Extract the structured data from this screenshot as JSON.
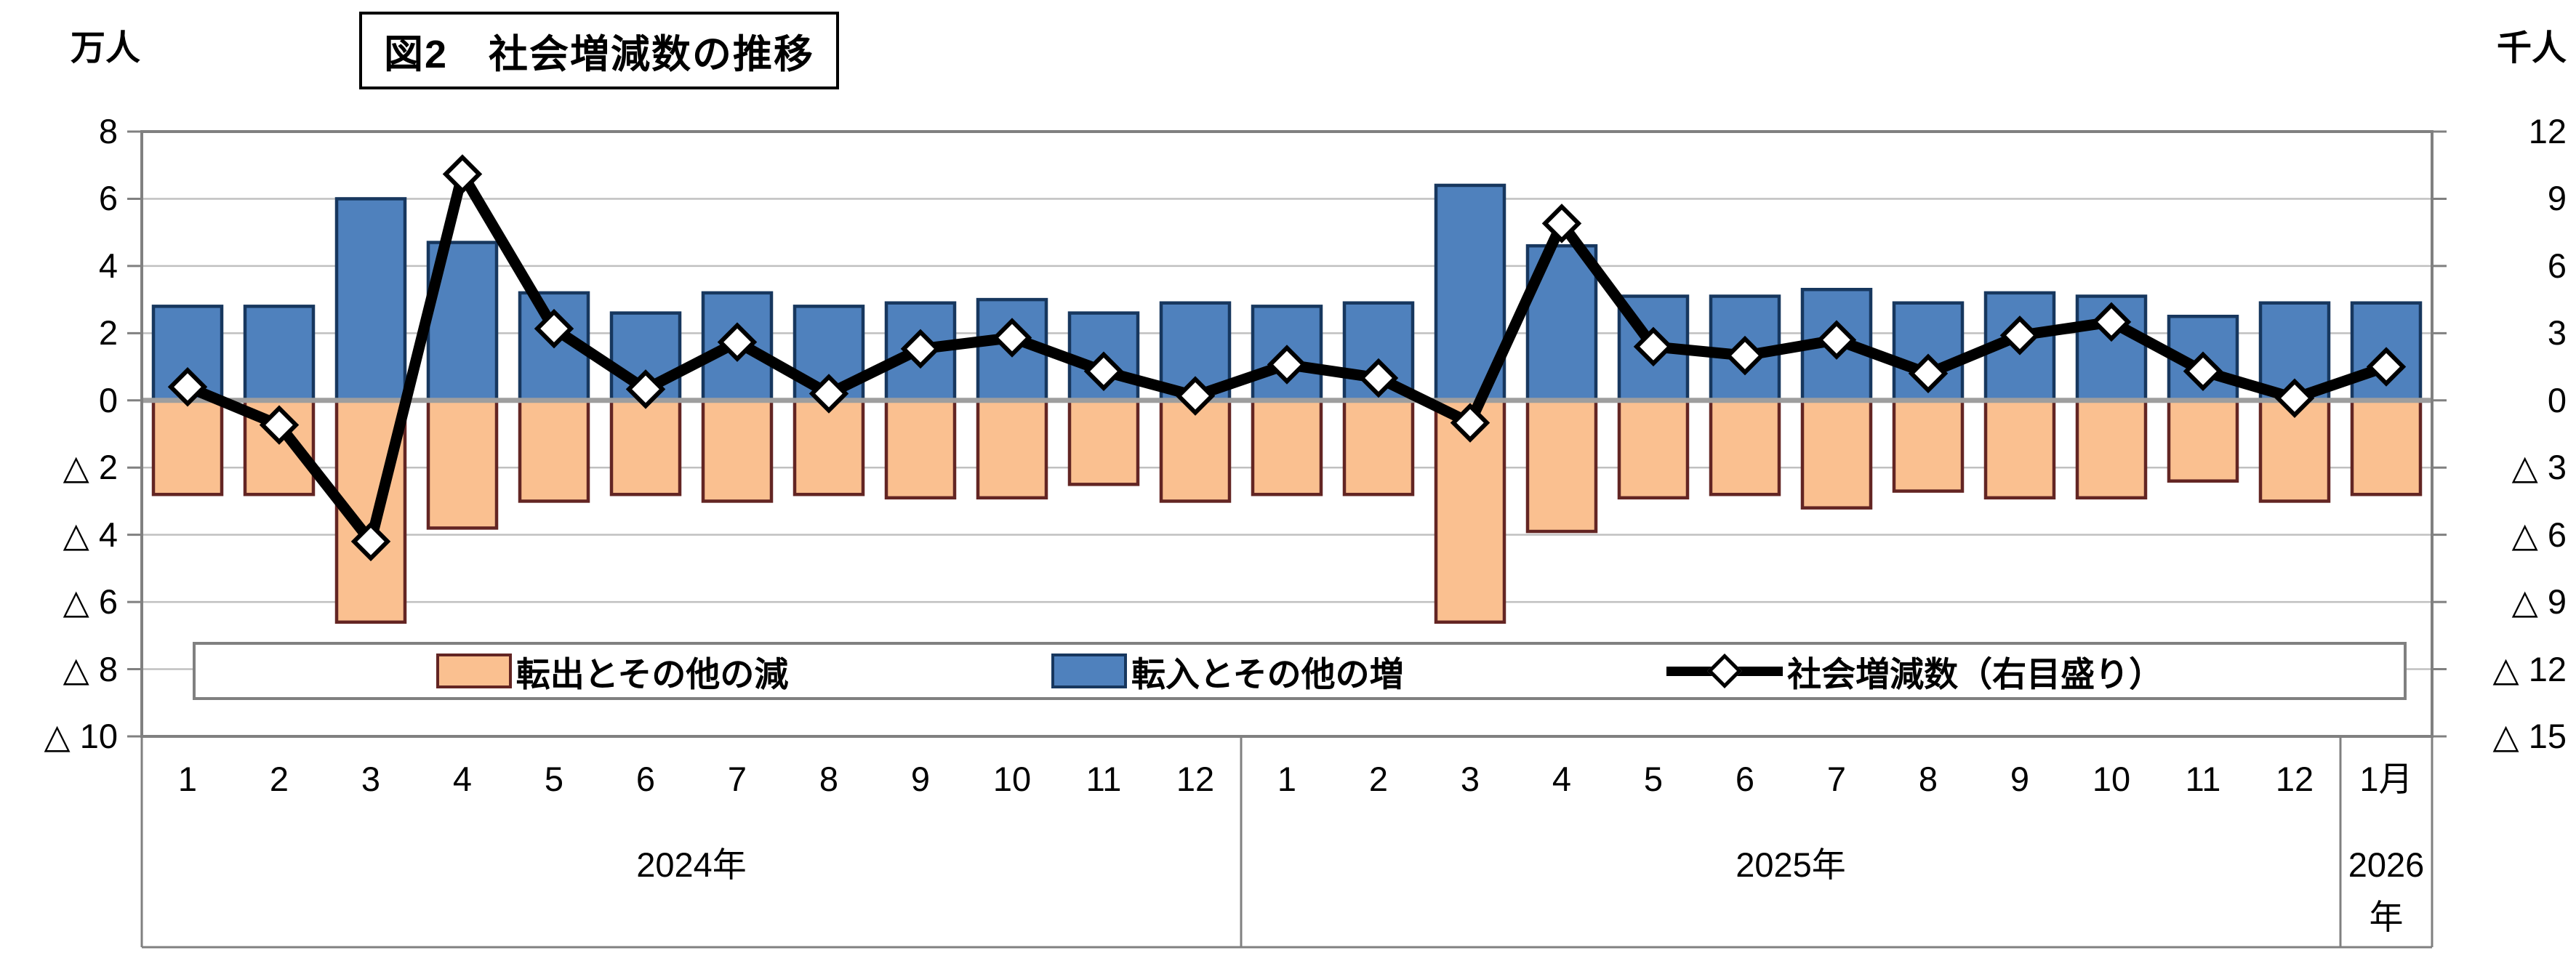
{
  "title": "図2　社会増減数の推移",
  "left_axis_unit": "万人",
  "right_axis_unit": "千人",
  "colors": {
    "grid": "#C0C0C0",
    "zero_line": "#9E9E9E",
    "border": "#808080",
    "background": "#FFFFFF",
    "bar_out_fill": "#FAC090",
    "bar_out_stroke": "#632523",
    "bar_in_fill": "#4F81BD",
    "bar_in_stroke": "#17375E",
    "line": "#000000",
    "marker_fill": "#FFFFFF"
  },
  "chart_data": {
    "type": "bar+line",
    "left_axis": {
      "unit": "万人",
      "min": -10,
      "max": 8,
      "tick_step": 2,
      "tick_labels": [
        "8",
        "6",
        "4",
        "2",
        "0",
        "△ 2",
        "△ 4",
        "△ 6",
        "△ 8",
        "△ 10"
      ]
    },
    "right_axis": {
      "unit": "千人",
      "min": -15,
      "max": 12,
      "tick_step": 3,
      "tick_labels": [
        "12",
        "9",
        "6",
        "3",
        "0",
        "△ 3",
        "△ 6",
        "△ 9",
        "△ 12",
        "△ 15"
      ]
    },
    "x_groups": [
      {
        "year_label_lines": [
          "2024年"
        ],
        "months": [
          "1",
          "2",
          "3",
          "4",
          "5",
          "6",
          "7",
          "8",
          "9",
          "10",
          "11",
          "12"
        ]
      },
      {
        "year_label_lines": [
          "2025年"
        ],
        "months": [
          "1",
          "2",
          "3",
          "4",
          "5",
          "6",
          "7",
          "8",
          "9",
          "10",
          "11",
          "12"
        ]
      },
      {
        "year_label_lines": [
          "2026",
          "年"
        ],
        "months": [
          "1月"
        ]
      }
    ],
    "series": [
      {
        "name": "転出とその他の減",
        "type": "bar",
        "axis": "left",
        "fill": "#FAC090",
        "stroke": "#632523",
        "values": [
          -2.8,
          -2.8,
          -6.6,
          -3.8,
          -3.0,
          -2.8,
          -3.0,
          -2.8,
          -2.9,
          -2.9,
          -2.5,
          -3.0,
          -2.8,
          -2.8,
          -6.6,
          -3.9,
          -2.9,
          -2.8,
          -3.2,
          -2.7,
          -2.9,
          -2.9,
          -2.4,
          -3.0,
          -2.8
        ]
      },
      {
        "name": "転入とその他の増",
        "type": "bar",
        "axis": "left",
        "fill": "#4F81BD",
        "stroke": "#17375E",
        "values": [
          2.8,
          2.8,
          6.0,
          4.7,
          3.2,
          2.6,
          3.2,
          2.8,
          2.9,
          3.0,
          2.6,
          2.9,
          2.8,
          2.9,
          6.4,
          4.6,
          3.1,
          3.1,
          3.3,
          2.9,
          3.2,
          3.1,
          2.5,
          2.9,
          2.9
        ]
      },
      {
        "name": "社会増減数（右目盛り）",
        "type": "line",
        "axis": "right",
        "marker": "diamond",
        "color": "#000000",
        "values": [
          0.6,
          -1.1,
          -6.3,
          10.1,
          3.2,
          0.5,
          2.6,
          0.3,
          2.3,
          2.8,
          1.3,
          0.2,
          1.6,
          1.0,
          -1.0,
          7.9,
          2.4,
          2.0,
          2.7,
          1.2,
          2.9,
          3.5,
          1.3,
          0.1,
          1.5
        ]
      }
    ],
    "grid": true,
    "legend_position": "inside-bottom"
  }
}
